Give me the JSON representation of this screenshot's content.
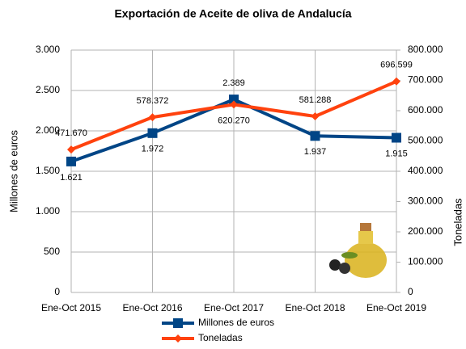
{
  "chart_data": {
    "type": "line",
    "title": "Exportación de Aceite de oliva de Andalucía",
    "y_label": "Millones de euros",
    "y2_label": "Toneladas",
    "categories": [
      "Ene-Oct 2015",
      "Ene-Oct 2016",
      "Ene-Oct 2017",
      "Ene-Oct 2018",
      "Ene-Oct 2019"
    ],
    "series": [
      {
        "name": "Millones de euros",
        "color": "#004586",
        "values": [
          1621,
          1972,
          2389,
          1937,
          1915
        ],
        "value_labels": [
          "1.621",
          "1.972",
          "2.389",
          "1.937",
          "1.915"
        ]
      },
      {
        "name": "Toneladas",
        "color": "#ff420e",
        "axis": "y2",
        "values": [
          471670,
          578372,
          620270,
          581288,
          696599
        ],
        "value_labels": [
          "471.670",
          "578.372",
          "620.270",
          "581.288",
          "696.599"
        ]
      }
    ],
    "ylim": [
      0,
      3000
    ],
    "yticks": [
      0,
      500,
      {
        "value": 1000,
        "label": "1.000"
      },
      {
        "value": 1500,
        "label": "1.500"
      },
      {
        "value": 2000,
        "label": "2.000"
      },
      {
        "value": 2500,
        "label": "2.500"
      },
      {
        "value": 3000,
        "label": "3.000"
      }
    ],
    "y2lim": [
      0,
      800000
    ],
    "y2ticks": [
      0,
      {
        "value": 100000,
        "label": "100.000"
      },
      {
        "value": 200000,
        "label": "200.000"
      },
      {
        "value": 300000,
        "label": "300.000"
      },
      {
        "value": 400000,
        "label": "400.000"
      },
      {
        "value": 500000,
        "label": "500.000"
      },
      {
        "value": 600000,
        "label": "600.000"
      },
      {
        "value": 700000,
        "label": "700.000"
      },
      {
        "value": 800000,
        "label": "800.000"
      }
    ],
    "grid": true
  }
}
